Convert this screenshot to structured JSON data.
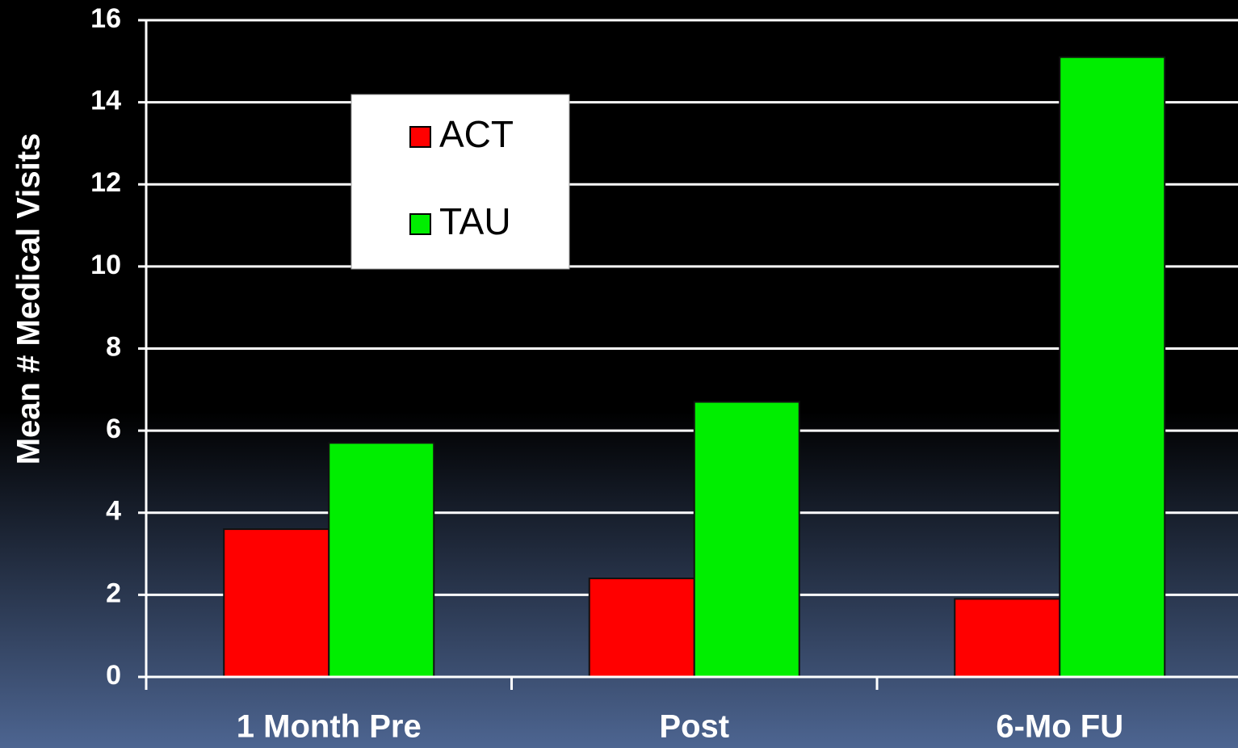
{
  "chart_data": {
    "type": "bar",
    "y_label": "Mean # Medical Visits",
    "categories": [
      "1 Month Pre",
      "Post",
      "6-Mo FU"
    ],
    "series": [
      {
        "name": "ACT",
        "color": "#ff0000",
        "values": [
          3.6,
          2.4,
          1.9
        ]
      },
      {
        "name": "TAU",
        "color": "#00ee00",
        "values": [
          5.7,
          6.7,
          15.1
        ]
      }
    ],
    "ylim": [
      0,
      16
    ],
    "yticks": [
      0,
      2,
      4,
      6,
      8,
      10,
      12,
      14,
      16
    ],
    "grid": true,
    "legend": "upper left"
  }
}
